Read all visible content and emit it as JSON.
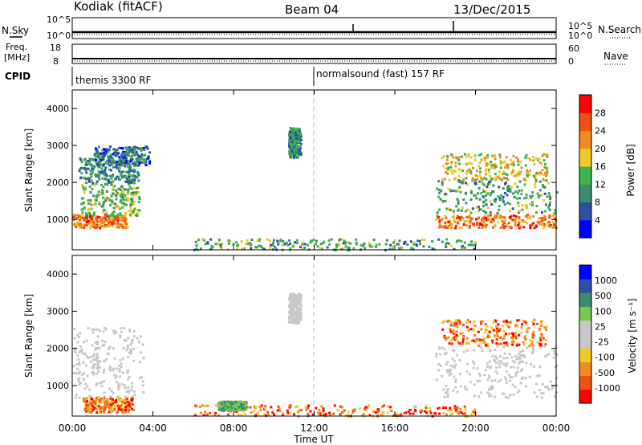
{
  "header": {
    "station": "Kodiak (fitACF)",
    "beam": "Beam 04",
    "date": "13/Dec/2015"
  },
  "summary_panels": {
    "nsky_label": "N.Sky",
    "nsearch_label": "N.Search",
    "noise_ticks": [
      "10^5",
      "10^0"
    ],
    "freq_label_1": "Freq.",
    "freq_label_2": "[MHz]",
    "freq_ticks": [
      "18",
      "8"
    ],
    "nave_label": "Nave",
    "nave_ticks": [
      "60",
      "0"
    ],
    "cpid_label": "CPID",
    "cpid_1": "themis 3300 RF",
    "cpid_2": "normalsound (fast) 157 RF"
  },
  "colors": {
    "power_scale": [
      "#0000ff",
      "#2d4fa6",
      "#3c8c6e",
      "#3cb447",
      "#f0c828",
      "#f08c1e",
      "#f05014",
      "#ff0000"
    ],
    "velocity_scale": [
      "#ff0000",
      "#f05014",
      "#f08c1e",
      "#f0c828",
      "#c8c8c8",
      "#c8c8c8",
      "#78c850",
      "#3c8c6e",
      "#2d4fa6",
      "#0000ff"
    ],
    "ground_scatter": "#c8c8c8"
  },
  "chart_data": [
    {
      "type": "heatmap",
      "name": "Power",
      "xlabel": "Time UT",
      "ylabel": "Slant Range [km]",
      "colorbar_label": "Power [dB]",
      "colorbar_ticks": [
        "28",
        "24",
        "20",
        "16",
        "12",
        "8",
        "4"
      ],
      "colorbar_range": [
        0,
        32
      ],
      "x_tick_labels": [
        "00:00",
        "04:00",
        "08:00",
        "12:00",
        "16:00",
        "20:00",
        "00:00"
      ],
      "x_range_hours": [
        0,
        24
      ],
      "y_tick_labels": [
        "4000",
        "3000",
        "2000",
        "1000"
      ],
      "y_range_km": [
        180,
        4500
      ],
      "regions": [
        {
          "t": [
            0.0,
            2.7
          ],
          "r": [
            800,
            1150
          ],
          "level": 24
        },
        {
          "t": [
            0.4,
            3.3
          ],
          "r": [
            1100,
            2000
          ],
          "level": 14
        },
        {
          "t": [
            0.3,
            3.3
          ],
          "r": [
            2000,
            2700
          ],
          "level": 10
        },
        {
          "t": [
            1.0,
            3.8
          ],
          "r": [
            2500,
            3000
          ],
          "level": 8
        },
        {
          "t": [
            18.0,
            24.0
          ],
          "r": [
            800,
            1150
          ],
          "level": 24
        },
        {
          "t": [
            18.0,
            24.0
          ],
          "r": [
            1200,
            2100
          ],
          "level": 12
        },
        {
          "t": [
            18.3,
            23.5
          ],
          "r": [
            2100,
            2800
          ],
          "level": 18
        },
        {
          "t": [
            6.0,
            20.0
          ],
          "r": [
            200,
            500
          ],
          "level": 12
        },
        {
          "t": [
            10.7,
            11.3
          ],
          "r": [
            2700,
            3500
          ],
          "level": 10
        }
      ]
    },
    {
      "type": "heatmap",
      "name": "Velocity",
      "xlabel": "Time UT",
      "ylabel": "Slant Range [km]",
      "colorbar_label": "Velocity [m s⁻¹]",
      "colorbar_ticks": [
        "1000",
        "500",
        "100",
        "25",
        "-25",
        "-100",
        "-500",
        "-1000"
      ],
      "x_tick_labels": [
        "00:00",
        "04:00",
        "08:00",
        "12:00",
        "16:00",
        "20:00",
        "00:00"
      ],
      "x_range_hours": [
        0,
        24
      ],
      "y_tick_labels": [
        "4000",
        "3000",
        "2000",
        "1000"
      ],
      "y_range_km": [
        180,
        4500
      ],
      "regions": [
        {
          "t": [
            0.0,
            3.5
          ],
          "r": [
            700,
            2600
          ],
          "kind": "ground"
        },
        {
          "t": [
            0.5,
            3.0
          ],
          "r": [
            300,
            700
          ],
          "kind": "negative"
        },
        {
          "t": [
            18.0,
            24.0
          ],
          "r": [
            700,
            2100
          ],
          "kind": "ground"
        },
        {
          "t": [
            18.3,
            23.5
          ],
          "r": [
            2100,
            2800
          ],
          "kind": "negative"
        },
        {
          "t": [
            6.0,
            20.0
          ],
          "r": [
            200,
            500
          ],
          "kind": "negative"
        },
        {
          "t": [
            7.2,
            8.6
          ],
          "r": [
            350,
            600
          ],
          "kind": "positive"
        },
        {
          "t": [
            10.7,
            11.3
          ],
          "r": [
            2700,
            3500
          ],
          "kind": "ground"
        }
      ]
    }
  ]
}
